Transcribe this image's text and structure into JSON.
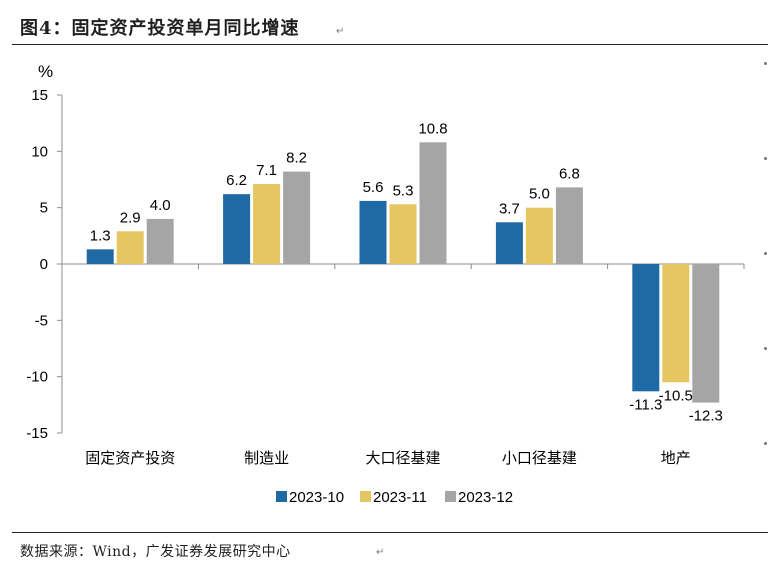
{
  "title": "图4：固定资产投资单月同比增速",
  "source": "数据来源：Wind，广发证券发展研究中心",
  "return_glyph": "↵",
  "colors": {
    "s1": "#1f6aa5",
    "s2": "#e6c660",
    "s3": "#a5a5a5"
  },
  "chart_data": {
    "type": "bar",
    "unit_label": "%",
    "categories": [
      "固定资产投资",
      "制造业",
      "大口径基建",
      "小口径基建",
      "地产"
    ],
    "series": [
      {
        "name": "2023-10",
        "values": [
          1.3,
          6.2,
          5.6,
          3.7,
          -11.3
        ],
        "labels": [
          "1.3",
          "6.2",
          "5.6",
          "3.7",
          "-11.3"
        ]
      },
      {
        "name": "2023-11",
        "values": [
          2.9,
          7.1,
          5.3,
          5.0,
          -10.5
        ],
        "labels": [
          "2.9",
          "7.1",
          "5.3",
          "5.0",
          "-10.5"
        ]
      },
      {
        "name": "2023-12",
        "values": [
          4.0,
          8.2,
          10.8,
          6.8,
          -12.3
        ],
        "labels": [
          "4.0",
          "8.2",
          "10.8",
          "6.8",
          "-12.3"
        ]
      }
    ],
    "ylim": [
      -15,
      15
    ],
    "yticks": [
      15,
      10,
      5,
      0,
      -5,
      -10,
      -15
    ],
    "ytick_labels": [
      "15",
      "10",
      "5",
      "0",
      "-5",
      "-10",
      "-15"
    ],
    "grid": false,
    "legend_position": "bottom-center"
  }
}
